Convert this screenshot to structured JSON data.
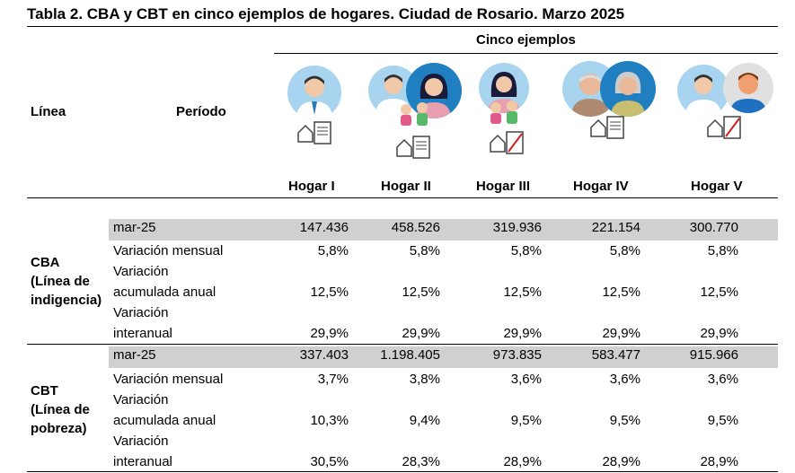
{
  "title": "Tabla 2. CBA y CBT en cinco ejemplos de hogares. Ciudad de Rosario. Marzo 2025",
  "header": {
    "group_label": "Cinco ejemplos",
    "col_linea": "Línea",
    "col_periodo": "Período",
    "hogares": [
      "Hogar I",
      "Hogar II",
      "Hogar III",
      "Hogar IV",
      "Hogar V"
    ]
  },
  "colors": {
    "grey_row": "#d0d0d0",
    "avatar_bg": "#a8d4f0",
    "avatar_bg_dark": "#1f7fc0"
  },
  "cba": {
    "label_line1": "CBA",
    "label_line2": "(Línea de",
    "label_line3": "indigencia)",
    "rows": [
      {
        "period": [
          "mar-25"
        ],
        "values": [
          "147.436",
          "458.526",
          "319.936",
          "221.154",
          "300.770"
        ]
      },
      {
        "period": [
          "Variación mensual"
        ],
        "values": [
          "5,8%",
          "5,8%",
          "5,8%",
          "5,8%",
          "5,8%"
        ]
      },
      {
        "period": [
          "Variación",
          "acumulada anual"
        ],
        "values": [
          "12,5%",
          "12,5%",
          "12,5%",
          "12,5%",
          "12,5%"
        ]
      },
      {
        "period": [
          "Variación",
          "interanual"
        ],
        "values": [
          "29,9%",
          "29,9%",
          "29,9%",
          "29,9%",
          "29,9%"
        ]
      }
    ]
  },
  "cbt": {
    "label_line1": "CBT",
    "label_line2": "(Línea de",
    "label_line3": "pobreza)",
    "rows": [
      {
        "period": [
          "mar-25"
        ],
        "values": [
          "337.403",
          "1.198.405",
          "973.835",
          "583.477",
          "915.966"
        ]
      },
      {
        "period": [
          "Variación mensual"
        ],
        "values": [
          "3,7%",
          "3,8%",
          "3,6%",
          "3,6%",
          "3,6%"
        ]
      },
      {
        "period": [
          "Variación",
          "acumulada anual"
        ],
        "values": [
          "10,3%",
          "9,4%",
          "9,5%",
          "9,5%",
          "9,5%"
        ]
      },
      {
        "period": [
          "Variación",
          "interanual"
        ],
        "values": [
          "30,5%",
          "28,3%",
          "28,9%",
          "28,9%",
          "28,9%"
        ]
      }
    ]
  }
}
